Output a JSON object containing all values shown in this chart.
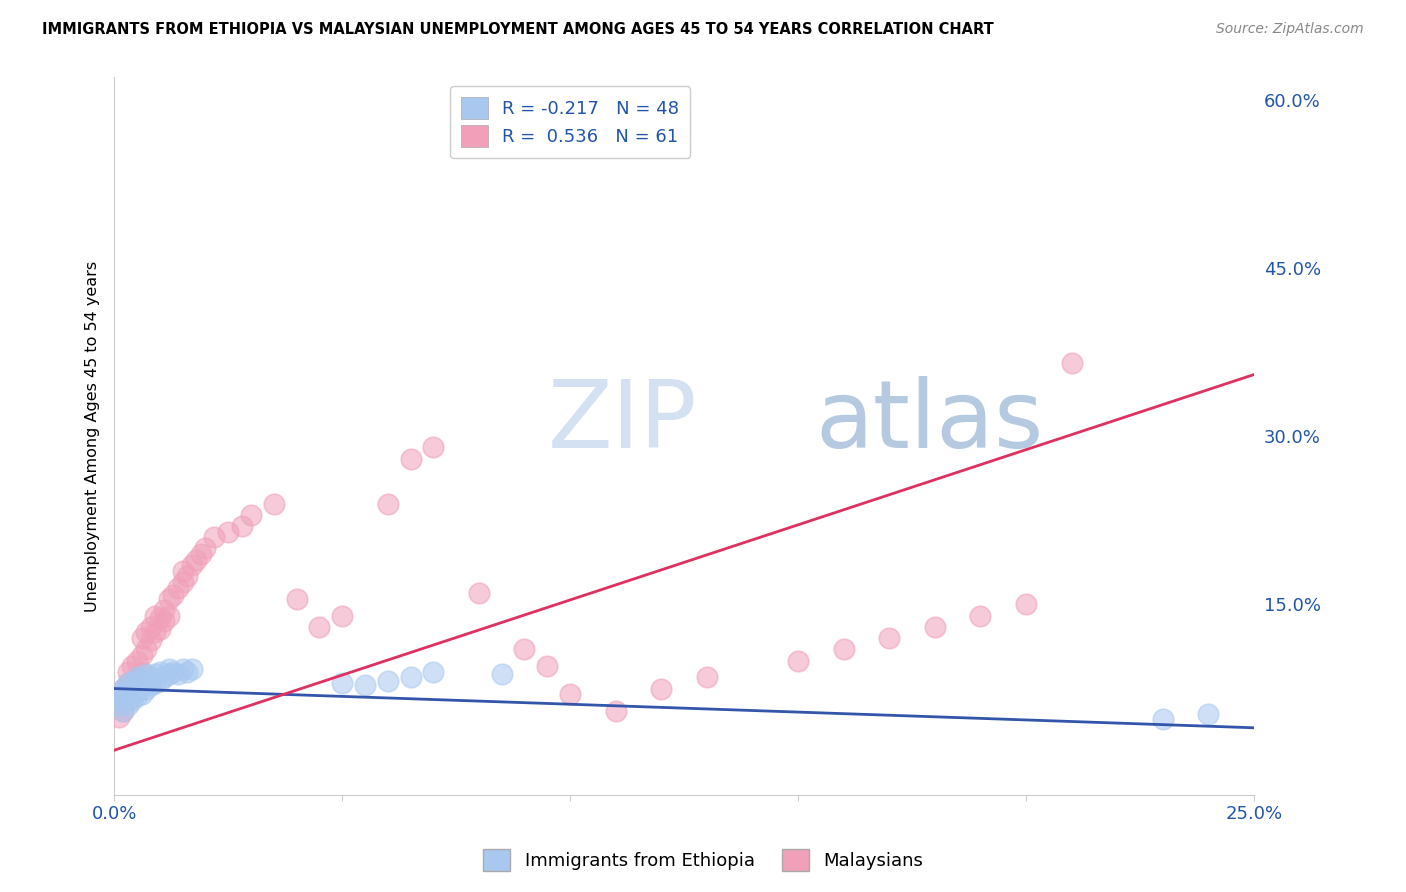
{
  "title": "IMMIGRANTS FROM ETHIOPIA VS MALAYSIAN UNEMPLOYMENT AMONG AGES 45 TO 54 YEARS CORRELATION CHART",
  "source": "Source: ZipAtlas.com",
  "ylabel": "Unemployment Among Ages 45 to 54 years",
  "xlim": [
    0.0,
    0.25
  ],
  "ylim": [
    -0.02,
    0.62
  ],
  "xticks": [
    0.0,
    0.05,
    0.1,
    0.15,
    0.2,
    0.25
  ],
  "xticklabels": [
    "0.0%",
    "",
    "",
    "",
    "",
    "25.0%"
  ],
  "yticks_right": [
    0.0,
    0.15,
    0.3,
    0.45,
    0.6
  ],
  "yticklabels_right": [
    "",
    "15.0%",
    "30.0%",
    "45.0%",
    "60.0%"
  ],
  "blue_R": -0.217,
  "blue_N": 48,
  "pink_R": 0.536,
  "pink_N": 61,
  "blue_color": "#A8C8F0",
  "pink_color": "#F0A0B8",
  "blue_line_color": "#3355AA",
  "pink_line_color": "#E03060",
  "watermark_zip": "ZIP",
  "watermark_atlas": "atlas",
  "blue_scatter_x": [
    0.001,
    0.001,
    0.001,
    0.002,
    0.002,
    0.002,
    0.002,
    0.003,
    0.003,
    0.003,
    0.003,
    0.004,
    0.004,
    0.004,
    0.004,
    0.005,
    0.005,
    0.005,
    0.005,
    0.005,
    0.006,
    0.006,
    0.006,
    0.007,
    0.007,
    0.007,
    0.008,
    0.008,
    0.009,
    0.009,
    0.01,
    0.01,
    0.011,
    0.012,
    0.012,
    0.013,
    0.014,
    0.015,
    0.016,
    0.017,
    0.05,
    0.055,
    0.06,
    0.065,
    0.07,
    0.085,
    0.23,
    0.24
  ],
  "blue_scatter_y": [
    0.06,
    0.065,
    0.07,
    0.055,
    0.065,
    0.07,
    0.075,
    0.06,
    0.068,
    0.072,
    0.08,
    0.065,
    0.07,
    0.075,
    0.08,
    0.068,
    0.072,
    0.078,
    0.082,
    0.085,
    0.07,
    0.078,
    0.085,
    0.075,
    0.08,
    0.088,
    0.078,
    0.085,
    0.08,
    0.088,
    0.082,
    0.09,
    0.085,
    0.088,
    0.092,
    0.09,
    0.088,
    0.092,
    0.09,
    0.092,
    0.08,
    0.078,
    0.082,
    0.085,
    0.09,
    0.088,
    0.048,
    0.052
  ],
  "pink_scatter_x": [
    0.001,
    0.001,
    0.002,
    0.002,
    0.002,
    0.003,
    0.003,
    0.003,
    0.004,
    0.004,
    0.005,
    0.005,
    0.006,
    0.006,
    0.006,
    0.007,
    0.007,
    0.008,
    0.008,
    0.009,
    0.009,
    0.01,
    0.01,
    0.011,
    0.011,
    0.012,
    0.012,
    0.013,
    0.014,
    0.015,
    0.015,
    0.016,
    0.017,
    0.018,
    0.019,
    0.02,
    0.022,
    0.025,
    0.028,
    0.03,
    0.035,
    0.04,
    0.045,
    0.05,
    0.06,
    0.065,
    0.07,
    0.08,
    0.09,
    0.095,
    0.1,
    0.11,
    0.12,
    0.13,
    0.15,
    0.16,
    0.17,
    0.18,
    0.19,
    0.2,
    0.21
  ],
  "pink_scatter_y": [
    0.05,
    0.062,
    0.055,
    0.068,
    0.075,
    0.065,
    0.08,
    0.09,
    0.078,
    0.095,
    0.085,
    0.1,
    0.09,
    0.105,
    0.12,
    0.11,
    0.125,
    0.118,
    0.13,
    0.125,
    0.14,
    0.128,
    0.138,
    0.135,
    0.145,
    0.14,
    0.155,
    0.158,
    0.165,
    0.17,
    0.18,
    0.175,
    0.185,
    0.19,
    0.195,
    0.2,
    0.21,
    0.215,
    0.22,
    0.23,
    0.24,
    0.155,
    0.13,
    0.14,
    0.24,
    0.28,
    0.29,
    0.16,
    0.11,
    0.095,
    0.07,
    0.055,
    0.075,
    0.085,
    0.1,
    0.11,
    0.12,
    0.13,
    0.14,
    0.15,
    0.365
  ],
  "blue_line_x": [
    0.0,
    0.25
  ],
  "blue_line_y": [
    0.075,
    0.04
  ],
  "pink_line_x": [
    0.0,
    0.25
  ],
  "pink_line_y": [
    0.02,
    0.355
  ]
}
